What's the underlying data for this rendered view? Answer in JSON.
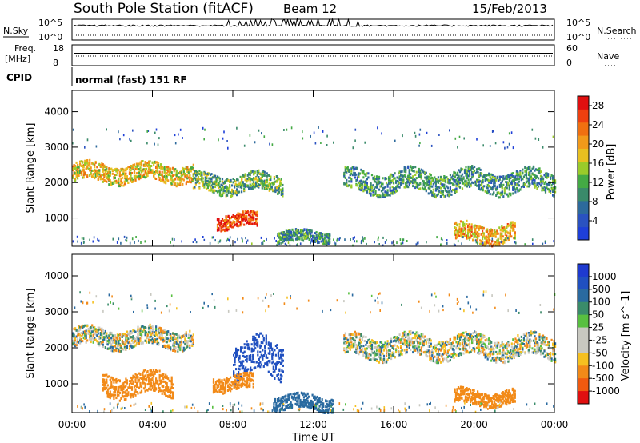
{
  "header": {
    "station": "South Pole Station (fitACF)",
    "beam": "Beam 12",
    "date": "15/Feb/2013"
  },
  "top_panels": {
    "nsky_label": "N.Sky",
    "nsky_ticks": [
      "10^5",
      "10^0"
    ],
    "nsearch_label": "N.Search",
    "nsearch_ticks": [
      "10^5",
      "10^0"
    ],
    "freq_label": "Freq.",
    "freq_unit": "[MHz]",
    "freq_ticks": [
      "18",
      "8"
    ],
    "nave_label": "Nave",
    "nave_ticks": [
      "60",
      "0"
    ],
    "cpid_label": "CPID",
    "cpid_value": "normal (fast) 151 RF"
  },
  "colors": {
    "power": [
      "#1e3fd8",
      "#2a52c0",
      "#2d6a9c",
      "#3a8a6a",
      "#44aa44",
      "#9acb2a",
      "#e8c020",
      "#f29a1a",
      "#f07010",
      "#ee4010",
      "#e01010"
    ],
    "velocity": [
      "#e01010",
      "#f05a10",
      "#f28a18",
      "#f5c020",
      "#c8c8c0",
      "#c8c8c0",
      "#58c040",
      "#3a8c6a",
      "#2a6aa0",
      "#2050c0",
      "#1e3ad0"
    ]
  },
  "chart_data": [
    {
      "type": "heatmap",
      "name": "power",
      "ylabel": "Slant Range [km]",
      "xlabel": "Time UT",
      "x_ticks": [
        "00:00",
        "04:00",
        "08:00",
        "12:00",
        "16:00",
        "20:00",
        "00:00"
      ],
      "y_ticks": [
        1000,
        2000,
        3000,
        4000
      ],
      "ylim": [
        200,
        4600
      ],
      "xlim": [
        0,
        24
      ],
      "colorbar": {
        "label": "Power [dB]",
        "ticks": [
          4,
          8,
          12,
          16,
          20,
          24,
          28
        ],
        "range": [
          0,
          30
        ]
      },
      "echo_bands": [
        {
          "t0": 0.0,
          "t1": 6.0,
          "r_center": 2300,
          "r_halfwidth": 250,
          "value": 18
        },
        {
          "t0": 6.0,
          "t1": 10.5,
          "r_center": 2000,
          "r_halfwidth": 250,
          "value": 12
        },
        {
          "t0": 7.2,
          "t1": 9.2,
          "r_center": 950,
          "r_halfwidth": 200,
          "value": 26
        },
        {
          "t0": 10.2,
          "t1": 12.8,
          "r_center": 500,
          "r_halfwidth": 150,
          "value": 10
        },
        {
          "t0": 13.5,
          "t1": 24.0,
          "r_center": 2050,
          "r_halfwidth": 300,
          "value": 10
        },
        {
          "t0": 19.0,
          "t1": 22.0,
          "r_center": 600,
          "r_halfwidth": 250,
          "value": 20
        }
      ]
    },
    {
      "type": "heatmap",
      "name": "velocity",
      "ylabel": "Slant Range [km]",
      "xlabel": "Time UT",
      "x_ticks": [
        "00:00",
        "04:00",
        "08:00",
        "12:00",
        "16:00",
        "20:00",
        "00:00"
      ],
      "y_ticks": [
        1000,
        2000,
        3000,
        4000
      ],
      "ylim": [
        200,
        4600
      ],
      "xlim": [
        0,
        24
      ],
      "colorbar": {
        "label": "Velocity [m s^-1]",
        "ticks": [
          1000,
          500,
          100,
          50,
          25,
          -25,
          -50,
          -100,
          -500,
          -1000
        ]
      },
      "echo_bands": [
        {
          "t0": 0.0,
          "t1": 6.0,
          "r_center": 2300,
          "r_halfwidth": 250,
          "value": 0
        },
        {
          "t0": 8.0,
          "t1": 10.5,
          "r_center": 1700,
          "r_halfwidth": 500,
          "value": 800
        },
        {
          "t0": 7.0,
          "t1": 9.0,
          "r_center": 1050,
          "r_halfwidth": 200,
          "value": -300
        },
        {
          "t0": 10.0,
          "t1": 13.0,
          "r_center": 500,
          "r_halfwidth": 200,
          "value": 300
        },
        {
          "t0": 13.5,
          "t1": 24.0,
          "r_center": 2050,
          "r_halfwidth": 300,
          "value": 0
        },
        {
          "t0": 19.0,
          "t1": 22.0,
          "r_center": 650,
          "r_halfwidth": 200,
          "value": -300
        },
        {
          "t0": 1.5,
          "t1": 5.0,
          "r_center": 1000,
          "r_halfwidth": 300,
          "value": -250
        }
      ]
    }
  ]
}
